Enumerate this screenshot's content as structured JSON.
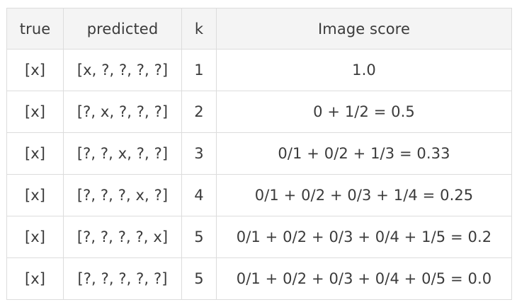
{
  "table": {
    "headers": [
      "true",
      "predicted",
      "k",
      "Image score"
    ],
    "rows": [
      [
        "[x]",
        "[x, ?, ?, ?, ?]",
        "1",
        "1.0"
      ],
      [
        "[x]",
        "[?, x, ?, ?, ?]",
        "2",
        "0 + 1/2 = 0.5"
      ],
      [
        "[x]",
        "[?, ?, x, ?, ?]",
        "3",
        "0/1 + 0/2 + 1/3 = 0.33"
      ],
      [
        "[x]",
        "[?, ?, ?, x, ?]",
        "4",
        "0/1 + 0/2 + 0/3 + 1/4 = 0.25"
      ],
      [
        "[x]",
        "[?, ?, ?, ?, x]",
        "5",
        "0/1 + 0/2 + 0/3 + 0/4 + 1/5 = 0.2"
      ],
      [
        "[x]",
        "[?, ?, ?, ?, ?]",
        "5",
        "0/1 + 0/2 + 0/3 + 0/4 + 0/5 = 0.0"
      ]
    ]
  }
}
